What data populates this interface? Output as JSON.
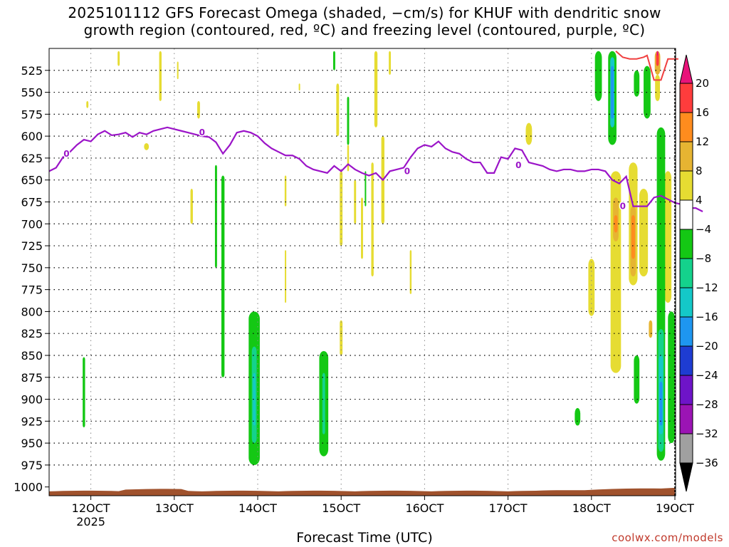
{
  "chart_data": {
    "type": "heatmap",
    "title": "2025101112 GFS Forecast Omega (shaded, −cm/s) for KHUF with dendritic snow growth region (contoured, red, ºC) and freezing level (contoured, purple, ºC)",
    "title_line1": "2025101112 GFS Forecast Omega (shaded, −cm/s) for KHUF with dendritic snow",
    "title_line2": "growth region (contoured, red, ºC) and freezing level (contoured, purple, ºC)",
    "xlabel": "Forecast Time (UTC)",
    "x_ticks": [
      {
        "label": "12OCT",
        "sub": "2025",
        "hour": 12
      },
      {
        "label": "13OCT",
        "sub": "",
        "hour": 36
      },
      {
        "label": "14OCT",
        "sub": "",
        "hour": 60
      },
      {
        "label": "15OCT",
        "sub": "",
        "hour": 84
      },
      {
        "label": "16OCT",
        "sub": "",
        "hour": 108
      },
      {
        "label": "17OCT",
        "sub": "",
        "hour": 132
      },
      {
        "label": "18OCT",
        "sub": "",
        "hour": 156
      },
      {
        "label": "19OCT",
        "sub": "",
        "hour": 180
      }
    ],
    "x_range_hours": [
      0,
      180
    ],
    "y_ticks": [
      525,
      550,
      575,
      600,
      625,
      650,
      675,
      700,
      725,
      750,
      775,
      800,
      825,
      850,
      875,
      900,
      925,
      950,
      975,
      1000
    ],
    "y_range_hpa": [
      1010,
      500
    ],
    "grid": true,
    "colorbar": {
      "labels": [
        "20",
        "16",
        "12",
        "8",
        "4",
        "−4",
        "−8",
        "−12",
        "−16",
        "−20",
        "−24",
        "−28",
        "−32",
        "−36"
      ],
      "colors": [
        "#e8137a",
        "#ff3c3c",
        "#ff8c1e",
        "#e6b432",
        "#e6dc32",
        "#ffffff",
        "#14c814",
        "#14d28c",
        "#14c8c8",
        "#1e96f0",
        "#1e3cd2",
        "#6e14c8",
        "#9b14b4",
        "#a0a0a0"
      ]
    },
    "freezing_level": {
      "label": "0",
      "color": "#9b14c8",
      "points": [
        [
          0,
          640
        ],
        [
          2,
          636
        ],
        [
          4,
          624
        ],
        [
          6,
          618
        ],
        [
          8,
          610
        ],
        [
          10,
          604
        ],
        [
          12,
          606
        ],
        [
          14,
          598
        ],
        [
          16,
          594
        ],
        [
          18,
          599
        ],
        [
          20,
          598
        ],
        [
          22,
          596
        ],
        [
          24,
          601
        ],
        [
          26,
          596
        ],
        [
          28,
          598
        ],
        [
          30,
          594
        ],
        [
          32,
          592
        ],
        [
          34,
          590
        ],
        [
          36,
          592
        ],
        [
          38,
          594
        ],
        [
          40,
          596
        ],
        [
          42,
          598
        ],
        [
          44,
          600
        ],
        [
          46,
          601
        ],
        [
          48,
          607
        ],
        [
          50,
          620
        ],
        [
          52,
          610
        ],
        [
          54,
          596
        ],
        [
          56,
          594
        ],
        [
          58,
          596
        ],
        [
          60,
          600
        ],
        [
          62,
          608
        ],
        [
          64,
          614
        ],
        [
          66,
          618
        ],
        [
          68,
          622
        ],
        [
          70,
          622
        ],
        [
          72,
          626
        ],
        [
          74,
          634
        ],
        [
          76,
          638
        ],
        [
          78,
          640
        ],
        [
          80,
          642
        ],
        [
          82,
          634
        ],
        [
          84,
          640
        ],
        [
          86,
          632
        ],
        [
          88,
          638
        ],
        [
          90,
          642
        ],
        [
          92,
          645
        ],
        [
          94,
          642
        ],
        [
          96,
          650
        ],
        [
          98,
          640
        ],
        [
          100,
          638
        ],
        [
          102,
          636
        ],
        [
          104,
          624
        ],
        [
          106,
          614
        ],
        [
          108,
          610
        ],
        [
          110,
          612
        ],
        [
          112,
          606
        ],
        [
          114,
          614
        ],
        [
          116,
          618
        ],
        [
          118,
          620
        ],
        [
          120,
          626
        ],
        [
          122,
          630
        ],
        [
          124,
          630
        ],
        [
          126,
          642
        ],
        [
          128,
          642
        ],
        [
          130,
          624
        ],
        [
          132,
          626
        ],
        [
          134,
          614
        ],
        [
          136,
          616
        ],
        [
          138,
          630
        ],
        [
          140,
          632
        ],
        [
          142,
          634
        ],
        [
          144,
          638
        ],
        [
          146,
          640
        ],
        [
          148,
          638
        ],
        [
          150,
          638
        ],
        [
          152,
          640
        ],
        [
          154,
          640
        ],
        [
          156,
          638
        ],
        [
          158,
          638
        ],
        [
          160,
          640
        ],
        [
          162,
          650
        ],
        [
          164,
          654
        ],
        [
          166,
          646
        ],
        [
          168,
          680
        ],
        [
          170,
          680
        ],
        [
          172,
          680
        ],
        [
          174,
          670
        ],
        [
          176,
          668
        ],
        [
          178,
          672
        ],
        [
          180,
          676
        ],
        [
          182,
          678
        ],
        [
          184,
          682
        ],
        [
          186,
          682
        ],
        [
          188,
          686
        ]
      ]
    },
    "dgz_contour": {
      "label": "",
      "color": "#f04040",
      "points": [
        [
          163,
          503
        ],
        [
          165,
          510
        ],
        [
          167,
          512
        ],
        [
          169,
          512
        ],
        [
          171,
          510
        ],
        [
          172,
          508
        ],
        [
          174,
          536
        ],
        [
          176,
          536
        ],
        [
          178,
          512
        ],
        [
          180,
          512
        ],
        [
          181,
          512
        ]
      ]
    },
    "ground_color": "#a0522d",
    "omega_patches": [
      {
        "cls": "p4",
        "t": 20,
        "p0": 503,
        "p1": 520,
        "w": 0.6
      },
      {
        "cls": "p4",
        "t": 32,
        "p0": 503,
        "p1": 560,
        "w": 0.7
      },
      {
        "cls": "p4",
        "t": 28,
        "p0": 608,
        "p1": 616,
        "w": 1.4
      },
      {
        "cls": "p4",
        "t": 11,
        "p0": 560,
        "p1": 568,
        "w": 0.6
      },
      {
        "cls": "p4",
        "t": 41,
        "p0": 660,
        "p1": 700,
        "w": 0.7
      },
      {
        "cls": "p4",
        "t": 43,
        "p0": 560,
        "p1": 580,
        "w": 0.8
      },
      {
        "cls": "p4",
        "t": 37,
        "p0": 515,
        "p1": 535,
        "w": 0.4
      },
      {
        "cls": "p4",
        "t": 68,
        "p0": 645,
        "p1": 680,
        "w": 0.5
      },
      {
        "cls": "p4",
        "t": 72,
        "p0": 540,
        "p1": 548,
        "w": 0.4
      },
      {
        "cls": "p4",
        "t": 83,
        "p0": 540,
        "p1": 600,
        "w": 0.8
      },
      {
        "cls": "p4",
        "t": 84,
        "p0": 640,
        "p1": 725,
        "w": 0.8
      },
      {
        "cls": "p4",
        "t": 86,
        "p0": 610,
        "p1": 640,
        "w": 0.5
      },
      {
        "cls": "p4",
        "t": 88,
        "p0": 650,
        "p1": 700,
        "w": 0.6
      },
      {
        "cls": "p4",
        "t": 90,
        "p0": 670,
        "p1": 740,
        "w": 0.6
      },
      {
        "cls": "p4",
        "t": 94,
        "p0": 503,
        "p1": 590,
        "w": 0.9
      },
      {
        "cls": "p4",
        "t": 93,
        "p0": 630,
        "p1": 760,
        "w": 0.7
      },
      {
        "cls": "p4",
        "t": 96,
        "p0": 600,
        "p1": 700,
        "w": 0.9
      },
      {
        "cls": "p4",
        "t": 104,
        "p0": 730,
        "p1": 780,
        "w": 0.5
      },
      {
        "cls": "p4",
        "t": 98,
        "p0": 503,
        "p1": 530,
        "w": 0.6
      },
      {
        "cls": "p4",
        "t": 84,
        "p0": 810,
        "p1": 850,
        "w": 0.8
      },
      {
        "cls": "p4",
        "t": 68,
        "p0": 730,
        "p1": 790,
        "w": 0.4
      },
      {
        "cls": "p4",
        "t": 138,
        "p0": 585,
        "p1": 610,
        "w": 1.8
      },
      {
        "cls": "p4",
        "t": 156,
        "p0": 740,
        "p1": 805,
        "w": 1.8
      },
      {
        "cls": "p4",
        "t": 163,
        "p0": 640,
        "p1": 870,
        "w": 3.0
      },
      {
        "cls": "p4",
        "t": 168,
        "p0": 630,
        "p1": 770,
        "w": 2.5
      },
      {
        "cls": "p4",
        "t": 171,
        "p0": 660,
        "p1": 760,
        "w": 2.5
      },
      {
        "cls": "p4",
        "t": 175,
        "p0": 530,
        "p1": 560,
        "w": 1.4
      },
      {
        "cls": "p4",
        "t": 178,
        "p0": 640,
        "p1": 790,
        "w": 2.0
      },
      {
        "cls": "p8",
        "t": 163,
        "p0": 670,
        "p1": 720,
        "w": 1.6
      },
      {
        "cls": "p8",
        "t": 168,
        "p0": 680,
        "p1": 760,
        "w": 1.6
      },
      {
        "cls": "p8",
        "t": 173,
        "p0": 810,
        "p1": 830,
        "w": 1.0
      },
      {
        "cls": "p12",
        "t": 163,
        "p0": 690,
        "p1": 710,
        "w": 1.0
      },
      {
        "cls": "p12",
        "t": 168,
        "p0": 690,
        "p1": 740,
        "w": 1.0
      },
      {
        "cls": "p8",
        "t": 175,
        "p0": 503,
        "p1": 530,
        "w": 1.6
      },
      {
        "cls": "p16",
        "t": 175,
        "p0": 505,
        "p1": 520,
        "w": 0.8
      },
      {
        "cls": "p20",
        "t": 175,
        "p0": 503,
        "p1": 508,
        "w": 0.5
      },
      {
        "cls": "n4",
        "t": 10,
        "p0": 852,
        "p1": 932,
        "w": 0.7
      },
      {
        "cls": "n4",
        "t": 48,
        "p0": 633,
        "p1": 750,
        "w": 0.6
      },
      {
        "cls": "n4",
        "t": 50,
        "p0": 645,
        "p1": 875,
        "w": 0.9
      },
      {
        "cls": "n4",
        "t": 59,
        "p0": 800,
        "p1": 975,
        "w": 3.2
      },
      {
        "cls": "n8",
        "t": 59,
        "p0": 840,
        "p1": 950,
        "w": 1.4
      },
      {
        "cls": "n12",
        "t": 59,
        "p0": 870,
        "p1": 930,
        "w": 0.7
      },
      {
        "cls": "n4",
        "t": 82,
        "p0": 503,
        "p1": 525,
        "w": 0.6
      },
      {
        "cls": "n4",
        "t": 86,
        "p0": 555,
        "p1": 610,
        "w": 0.6
      },
      {
        "cls": "n4",
        "t": 79,
        "p0": 845,
        "p1": 965,
        "w": 2.6
      },
      {
        "cls": "n8",
        "t": 79,
        "p0": 870,
        "p1": 940,
        "w": 0.8
      },
      {
        "cls": "n4",
        "t": 91,
        "p0": 640,
        "p1": 680,
        "w": 0.4
      },
      {
        "cls": "n4",
        "t": 158,
        "p0": 503,
        "p1": 560,
        "w": 2.0
      },
      {
        "cls": "n4",
        "t": 162,
        "p0": 503,
        "p1": 610,
        "w": 2.4
      },
      {
        "cls": "n12",
        "t": 162,
        "p0": 510,
        "p1": 590,
        "w": 1.2
      },
      {
        "cls": "n16",
        "t": 162,
        "p0": 520,
        "p1": 580,
        "w": 0.8
      },
      {
        "cls": "n4",
        "t": 169,
        "p0": 525,
        "p1": 555,
        "w": 1.6
      },
      {
        "cls": "n4",
        "t": 172,
        "p0": 520,
        "p1": 580,
        "w": 2.0
      },
      {
        "cls": "n4",
        "t": 176,
        "p0": 590,
        "p1": 970,
        "w": 2.4
      },
      {
        "cls": "n8",
        "t": 176,
        "p0": 820,
        "p1": 960,
        "w": 1.6
      },
      {
        "cls": "n12",
        "t": 176,
        "p0": 850,
        "p1": 940,
        "w": 1.2
      },
      {
        "cls": "n16",
        "t": 176,
        "p0": 880,
        "p1": 930,
        "w": 0.8
      },
      {
        "cls": "n4",
        "t": 179,
        "p0": 800,
        "p1": 950,
        "w": 2.0
      },
      {
        "cls": "n4",
        "t": 169,
        "p0": 850,
        "p1": 905,
        "w": 1.6
      },
      {
        "cls": "n4",
        "t": 152,
        "p0": 910,
        "p1": 930,
        "w": 1.6
      }
    ]
  },
  "credit": "coolwx.com/models"
}
